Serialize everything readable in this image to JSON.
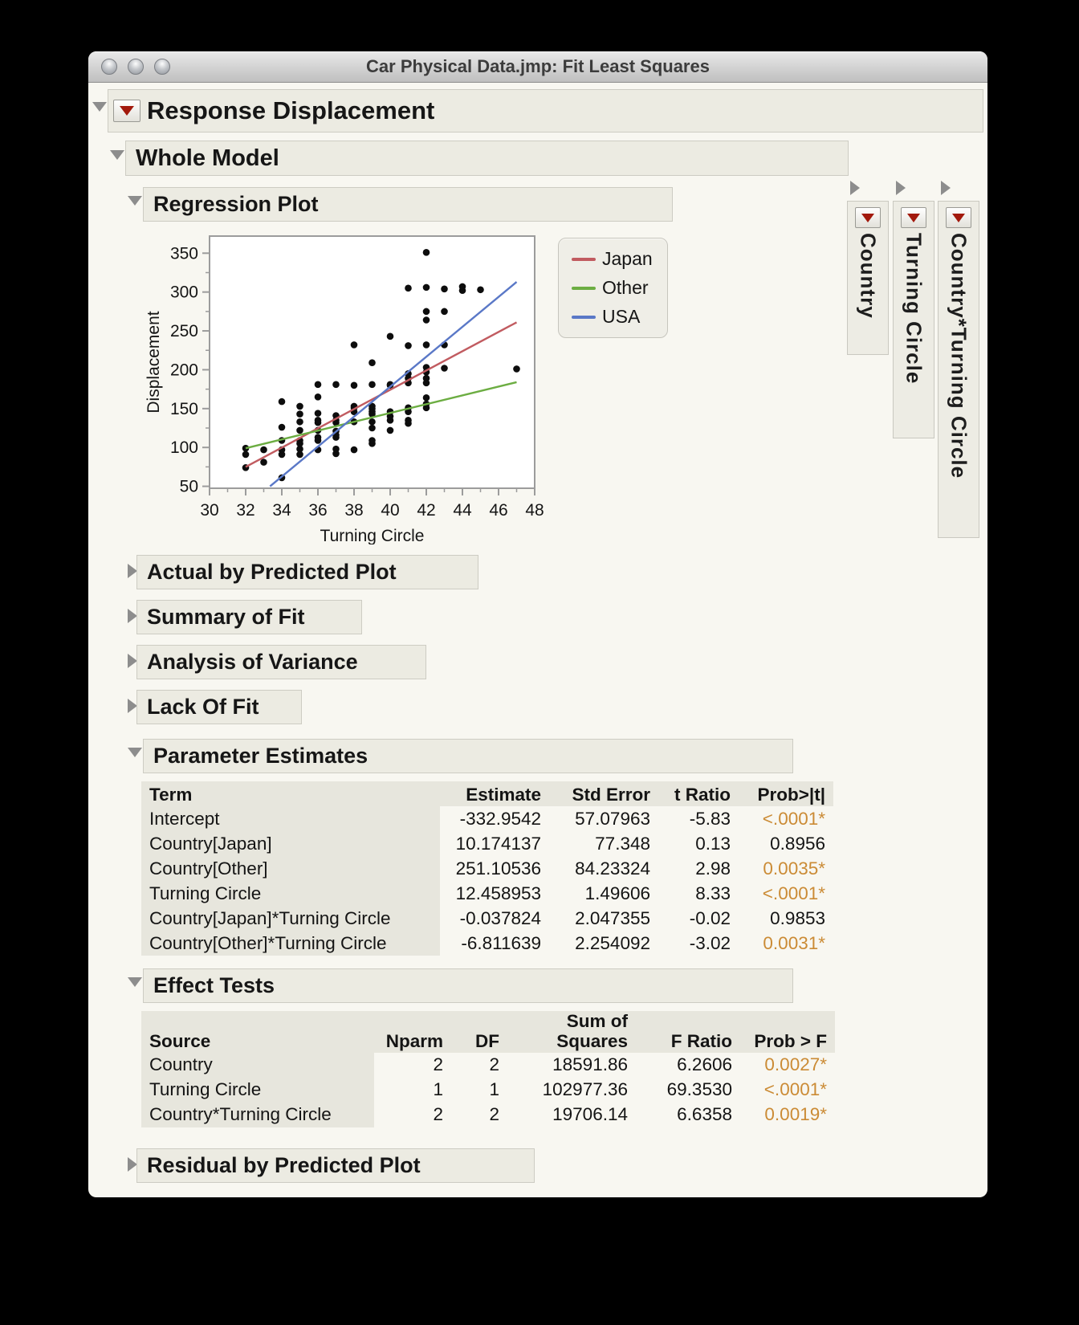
{
  "window": {
    "title": "Car Physical Data.jmp: Fit Least Squares"
  },
  "outline": {
    "response": "Response Displacement",
    "whole_model": "Whole Model",
    "regression_plot": "Regression Plot",
    "collapsed_sections": [
      "Actual by Predicted Plot",
      "Summary of Fit",
      "Analysis of Variance",
      "Lack Of Fit"
    ],
    "parameter_estimates": "Parameter Estimates",
    "effect_tests": "Effect Tests",
    "residual": "Residual by Predicted Plot"
  },
  "side_tabs": [
    "Country",
    "Turning Circle",
    "Country*Turning Circle"
  ],
  "chart_data": {
    "type": "scatter",
    "title": "Regression Plot",
    "xlabel": "Turning Circle",
    "ylabel": "Displacement",
    "xlim": [
      30,
      48
    ],
    "ylim": [
      47.5,
      372
    ],
    "x_ticks": [
      30,
      32,
      34,
      36,
      38,
      40,
      42,
      44,
      46,
      48
    ],
    "y_ticks": [
      50,
      100,
      150,
      200,
      250,
      300,
      350
    ],
    "x_minor_step": 1,
    "y_minor_step": 25,
    "grid": false,
    "legend_position": "right",
    "legend": [
      {
        "label": "Japan",
        "color": "#c15b60"
      },
      {
        "label": "Other",
        "color": "#6cad42"
      },
      {
        "label": "USA",
        "color": "#5a78c7"
      }
    ],
    "points": [
      [
        32,
        74
      ],
      [
        32,
        91
      ],
      [
        32,
        99
      ],
      [
        33,
        81
      ],
      [
        33,
        97
      ],
      [
        34,
        61
      ],
      [
        34,
        91
      ],
      [
        34,
        97
      ],
      [
        34,
        109
      ],
      [
        34,
        126
      ],
      [
        34,
        159
      ],
      [
        35,
        91
      ],
      [
        35,
        98
      ],
      [
        35,
        105
      ],
      [
        35,
        109
      ],
      [
        35,
        122
      ],
      [
        35,
        133
      ],
      [
        35,
        143
      ],
      [
        35,
        153
      ],
      [
        36,
        97
      ],
      [
        36,
        109
      ],
      [
        36,
        113
      ],
      [
        36,
        122
      ],
      [
        36,
        132
      ],
      [
        36,
        135
      ],
      [
        36,
        144
      ],
      [
        36,
        165
      ],
      [
        36,
        181
      ],
      [
        37,
        92
      ],
      [
        37,
        98
      ],
      [
        37,
        113
      ],
      [
        37,
        116
      ],
      [
        37,
        121
      ],
      [
        37,
        132
      ],
      [
        37,
        135
      ],
      [
        37,
        141
      ],
      [
        37,
        181
      ],
      [
        38,
        97
      ],
      [
        38,
        133
      ],
      [
        38,
        146
      ],
      [
        38,
        151
      ],
      [
        38,
        153
      ],
      [
        38,
        180
      ],
      [
        38,
        232
      ],
      [
        39,
        105
      ],
      [
        39,
        109
      ],
      [
        39,
        125
      ],
      [
        39,
        133
      ],
      [
        39,
        143
      ],
      [
        39,
        146
      ],
      [
        39,
        150
      ],
      [
        39,
        153
      ],
      [
        39,
        181
      ],
      [
        39,
        209
      ],
      [
        40,
        122
      ],
      [
        40,
        135
      ],
      [
        40,
        140
      ],
      [
        40,
        146
      ],
      [
        40,
        180
      ],
      [
        40,
        181
      ],
      [
        40,
        243
      ],
      [
        41,
        131
      ],
      [
        41,
        135
      ],
      [
        41,
        146
      ],
      [
        41,
        151
      ],
      [
        41,
        183
      ],
      [
        41,
        189
      ],
      [
        41,
        195
      ],
      [
        41,
        231
      ],
      [
        41,
        305
      ],
      [
        42,
        151
      ],
      [
        42,
        156
      ],
      [
        42,
        164
      ],
      [
        42,
        183
      ],
      [
        42,
        189
      ],
      [
        42,
        197
      ],
      [
        42,
        203
      ],
      [
        42,
        232
      ],
      [
        42,
        264
      ],
      [
        42,
        275
      ],
      [
        42,
        306
      ],
      [
        42,
        351
      ],
      [
        43,
        202
      ],
      [
        43,
        232
      ],
      [
        43,
        275
      ],
      [
        43,
        304
      ],
      [
        44,
        302
      ],
      [
        44,
        307
      ],
      [
        45,
        303
      ],
      [
        47,
        201
      ]
    ],
    "lines": [
      {
        "name": "Japan",
        "color": "#c15b60",
        "x1": 32,
        "y1": 75,
        "x2": 47,
        "y2": 261
      },
      {
        "name": "Other",
        "color": "#6cad42",
        "x1": 32,
        "y1": 99,
        "x2": 47,
        "y2": 184
      },
      {
        "name": "USA",
        "color": "#5a78c7",
        "x1": 33.35,
        "y1": 50,
        "x2": 47,
        "y2": 313
      }
    ]
  },
  "parameter_estimates": {
    "headers": [
      "Term",
      "Estimate",
      "Std Error",
      "t Ratio",
      "Prob>|t|"
    ],
    "rows": [
      [
        "Intercept",
        "-332.9542",
        "57.07963",
        "-5.83",
        "<.0001*"
      ],
      [
        "Country[Japan]",
        "10.174137",
        "77.348",
        "0.13",
        "0.8956"
      ],
      [
        "Country[Other]",
        "251.10536",
        "84.23324",
        "2.98",
        "0.0035*"
      ],
      [
        "Turning Circle",
        "12.458953",
        "1.49606",
        "8.33",
        "<.0001*"
      ],
      [
        "Country[Japan]*Turning Circle",
        "-0.037824",
        "2.047355",
        "-0.02",
        "0.9853"
      ],
      [
        "Country[Other]*Turning Circle",
        "-6.811639",
        "2.254092",
        "-3.02",
        "0.0031*"
      ]
    ]
  },
  "effect_tests": {
    "headers": [
      "Source",
      "Nparm",
      "DF",
      "Sum of\nSquares",
      "F Ratio",
      "Prob > F"
    ],
    "rows": [
      [
        "Country",
        "2",
        "2",
        "18591.86",
        "6.2606",
        "0.0027*"
      ],
      [
        "Turning Circle",
        "1",
        "1",
        "102977.36",
        "69.3530",
        "<.0001*"
      ],
      [
        "Country*Turning Circle",
        "2",
        "2",
        "19706.14",
        "6.6358",
        "0.0019*"
      ]
    ]
  },
  "colors": {
    "significant": "#cb8b35",
    "menu_triangle": "#a2190c",
    "header_bg": "#ecebe2"
  }
}
